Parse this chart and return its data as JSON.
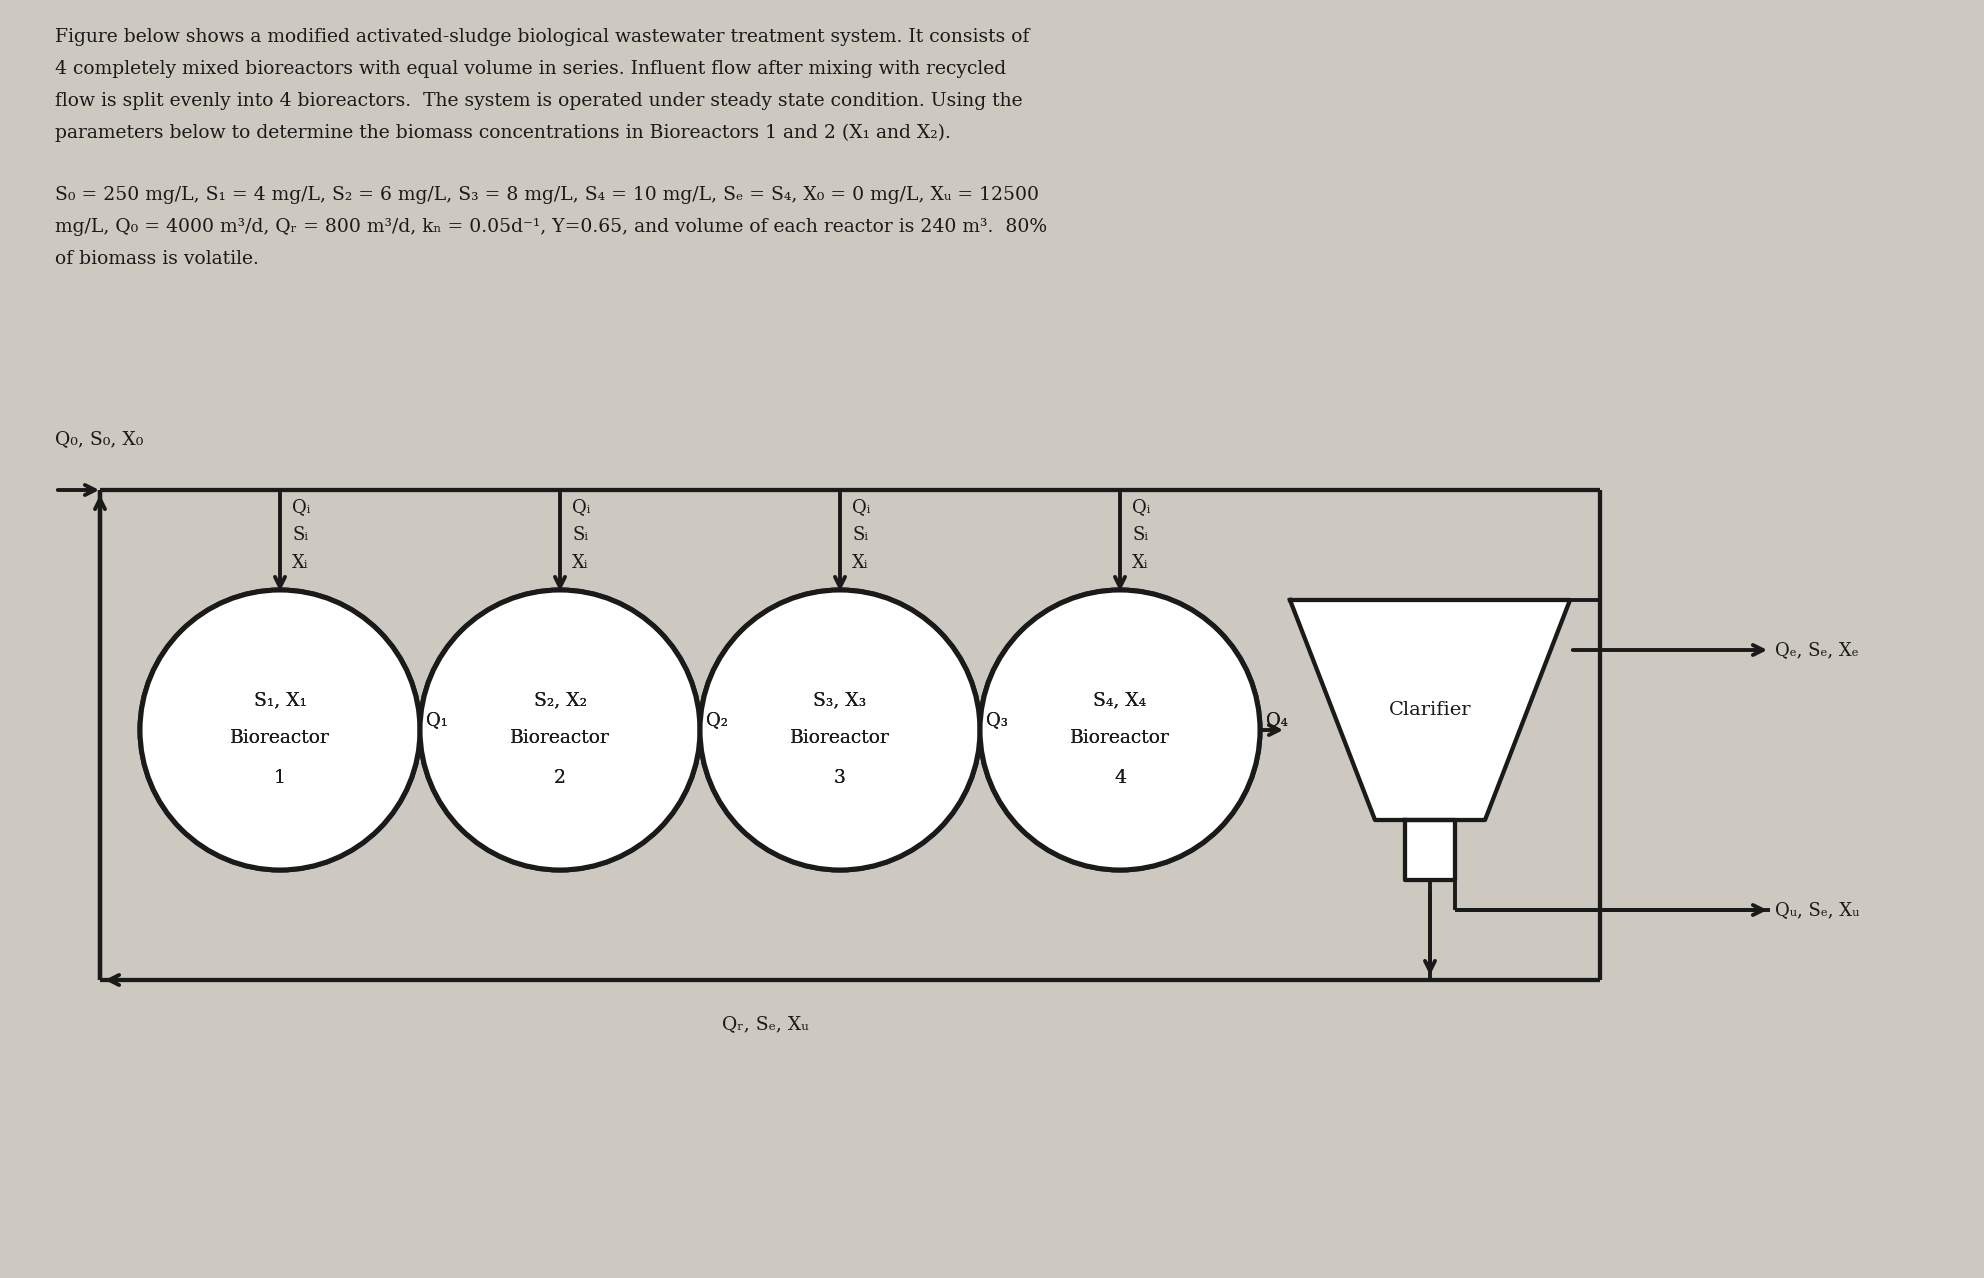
{
  "bg_color": "#cdc9c0",
  "text_color": "#1a1a1a",
  "para1_lines": [
    "Figure below shows a modified activated-sludge biological wastewater treatment system. It consists of",
    "4 completely mixed bioreactors with equal volume in series. Influent flow after mixing with recycled",
    "flow is split evenly into 4 bioreactors.  The system is operated under steady state condition. Using the",
    "parameters below to determine the biomass concentrations in Bioreactors 1 and 2 (X₁ and X₂)."
  ],
  "para2_lines": [
    "S₀ = 250 mg/L, S₁ = 4 mg/L, S₂ = 6 mg/L, S₃ = 8 mg/L, S₄ = 10 mg/L, Sₑ = S₄, X₀ = 0 mg/L, Xᵤ = 12500",
    "mg/L, Q₀ = 4000 m³/d, Qᵣ = 800 m³/d, kₙ = 0.05d⁻¹, Y=0.65, and volume of each reactor is 240 m³.  80%",
    "of biomass is volatile."
  ],
  "influentLabel": "Q₀, S₀, X₀",
  "reactors": [
    {
      "line1": "S₁, X₁",
      "line2": "Bioreactor",
      "line3": "1",
      "flow": "Q₁"
    },
    {
      "line1": "S₂, X₂",
      "line2": "Bioreactor",
      "line3": "2",
      "flow": "Q₂"
    },
    {
      "line1": "S₃, X₃",
      "line2": "Bioreactor",
      "line3": "3",
      "flow": "Q₃"
    },
    {
      "line1": "S₄, X₄",
      "line2": "Bioreactor",
      "line3": "4",
      "flow": "Q₄"
    }
  ],
  "topFeedLines": [
    "Qᵢ",
    "Sᵢ",
    "Xᵢ"
  ],
  "clarifierLabel": "Clarifier",
  "effluentLabel": "Qₑ, Sₑ, Xₑ",
  "wasteLabel": "Qᵤ, Sₑ, Xᵤ",
  "recycleLabel": "Qᵣ, Sₑ, Xᵤ",
  "lw": 2.8
}
